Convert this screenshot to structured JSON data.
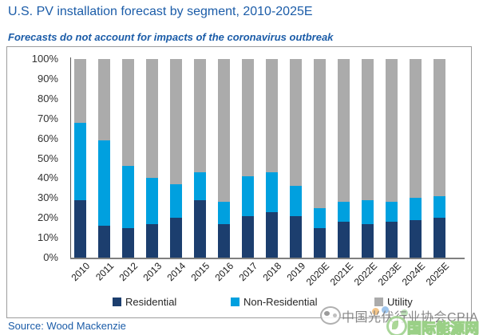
{
  "header": {
    "title": "U.S. PV installation forecast by segment, 2010-2025E",
    "subtitle": "Forecasts do not account for impacts of the coronavirus outbreak"
  },
  "chart_data": {
    "type": "bar",
    "stacked": true,
    "stack_unit": "percent",
    "title": "U.S. PV installation forecast by segment, 2010-2025E",
    "xlabel": "",
    "ylabel": "",
    "ylim": [
      0,
      100
    ],
    "grid": false,
    "legend_position": "bottom",
    "y_tick_labels": [
      "100%",
      "90%",
      "80%",
      "70%",
      "60%",
      "50%",
      "40%",
      "30%",
      "20%",
      "10%",
      "0%"
    ],
    "categories": [
      "2010",
      "2011",
      "2012",
      "2013",
      "2014",
      "2015",
      "2016",
      "2017",
      "2018",
      "2019",
      "2020E",
      "2021E",
      "2022E",
      "2023E",
      "2024E",
      "2025E"
    ],
    "series": [
      {
        "name": "Residential",
        "color": "#1C3E6E",
        "values": [
          29,
          16,
          15,
          17,
          20,
          29,
          17,
          21,
          23,
          21,
          15,
          18,
          17,
          18,
          19,
          20
        ]
      },
      {
        "name": "Non-Residential",
        "color": "#00A0DF",
        "values": [
          39,
          43,
          31,
          23,
          17,
          14,
          11,
          20,
          20,
          15,
          10,
          10,
          12,
          10,
          11,
          11
        ]
      },
      {
        "name": "Utility",
        "color": "#ABABAB",
        "values": [
          32,
          41,
          54,
          60,
          63,
          57,
          72,
          59,
          57,
          64,
          75,
          72,
          71,
          72,
          70,
          69
        ]
      }
    ]
  },
  "colors": {
    "accent_blue": "#1B5CA8",
    "axis_line": "#595959",
    "box_border": "#9D9D9D"
  },
  "source": {
    "text": "Source: Wood Mackenzie"
  },
  "watermark": {
    "cpia_text": "中国光伏行业协会CPIA",
    "energy_text": "国际能源网"
  }
}
